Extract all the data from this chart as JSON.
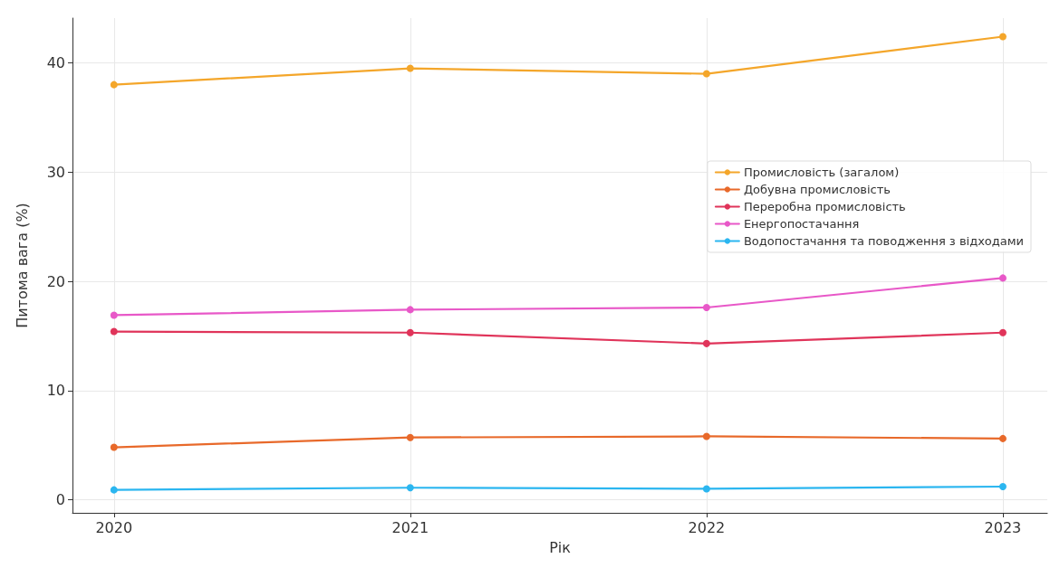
{
  "chart_data": {
    "type": "line",
    "xlabel": "Рік",
    "ylabel": "Питома вага (%)",
    "x": [
      2020,
      2021,
      2022,
      2023
    ],
    "xlim": [
      2019.86,
      2023.15
    ],
    "xticks": [
      2020,
      2021,
      2022,
      2023
    ],
    "ylim": [
      -1.2,
      44.1
    ],
    "yticks": [
      0,
      10,
      20,
      30,
      40
    ],
    "grid": true,
    "legend": "right",
    "marker": "circle",
    "line_style": "solid",
    "series": [
      {
        "name": "Промисловість (загалом)",
        "color": "#f4a62a",
        "values": [
          38.0,
          39.5,
          39.0,
          42.4
        ]
      },
      {
        "name": "Добувна промисловість",
        "color": "#e8692a",
        "values": [
          4.8,
          5.7,
          5.8,
          5.6
        ]
      },
      {
        "name": "Переробна промисловість",
        "color": "#e0345a",
        "values": [
          15.4,
          15.3,
          14.3,
          15.3
        ]
      },
      {
        "name": "Енергопостачання",
        "color": "#e858c8",
        "values": [
          16.9,
          17.4,
          17.6,
          20.3
        ]
      },
      {
        "name": "Водопостачання та поводження з відходами",
        "color": "#2bb6f0",
        "values": [
          0.9,
          1.1,
          1.0,
          1.2
        ]
      }
    ]
  }
}
